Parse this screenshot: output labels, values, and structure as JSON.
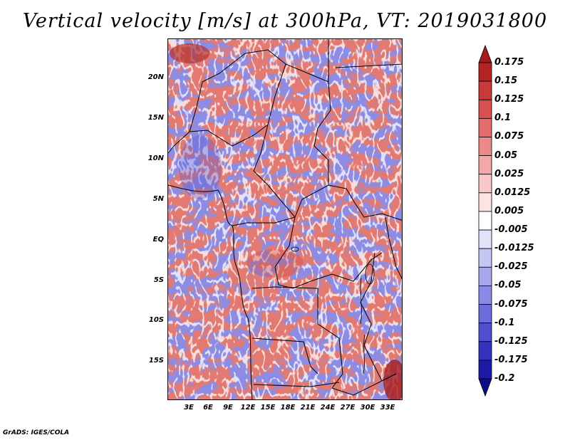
{
  "title": "Vertical velocity [m/s] at 300hPa, VT: 2019031800",
  "map": {
    "lat_labels": [
      "20N",
      "15N",
      "10N",
      "5N",
      "EQ",
      "5S",
      "10S",
      "15S"
    ],
    "lon_labels": [
      "3E",
      "6E",
      "9E",
      "12E",
      "15E",
      "18E",
      "21E",
      "24E",
      "27E",
      "30E",
      "33E"
    ],
    "lat_range": [
      -19.5,
      24.5
    ],
    "lon_range": [
      0,
      35
    ]
  },
  "colorbar": {
    "labels": [
      "0.175",
      "0.15",
      "0.125",
      "0.1",
      "0.075",
      "0.05",
      "0.025",
      "0.0125",
      "0.005",
      "-0.005",
      "-0.0125",
      "-0.025",
      "-0.05",
      "-0.075",
      "-0.1",
      "-0.125",
      "-0.175",
      "-0.2"
    ],
    "colors": [
      "#a51b1b",
      "#b52424",
      "#c83a3a",
      "#d85050",
      "#e46c6c",
      "#ec8a8a",
      "#f3a8a8",
      "#f8c8c8",
      "#fce4e4",
      "#ffffff",
      "#e2e2fb",
      "#c6c6f5",
      "#a8a8ee",
      "#8a8ae6",
      "#6c6cdc",
      "#4f4fd0",
      "#3333be",
      "#1a1aa6",
      "#0d0d8a"
    ]
  },
  "footer": "GrADS: IGES/COLA"
}
